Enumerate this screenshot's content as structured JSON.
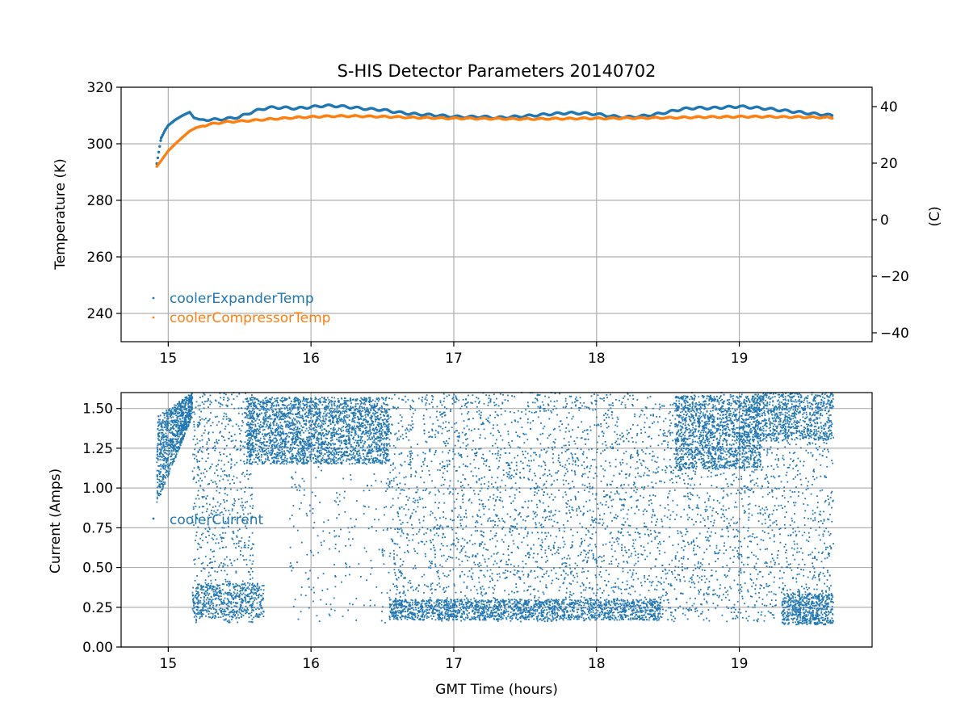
{
  "chart_data": [
    {
      "type": "scatter",
      "title": "S-HIS Detector Parameters 20140702",
      "xlabel": "",
      "ylabel": "Temperature (K)",
      "ylabel_right": "(C)",
      "xlim": [
        14.67,
        19.93
      ],
      "ylim": [
        230,
        320
      ],
      "ylim_right": [
        -43.15,
        46.85
      ],
      "xticks": [
        15,
        16,
        17,
        18,
        19
      ],
      "yticks": [
        240,
        260,
        280,
        300,
        320
      ],
      "yticks_right": [
        -40,
        -20,
        0,
        20,
        40
      ],
      "grid": true,
      "legend_position": "lower-left",
      "series": [
        {
          "name": "coolerExpanderTemp",
          "color": "#1f77b4",
          "x": [
            14.92,
            14.95,
            14.98,
            15.0,
            15.05,
            15.1,
            15.15,
            15.18,
            15.22,
            15.3,
            15.4,
            15.5,
            15.6,
            15.7,
            15.8,
            15.9,
            16.0,
            16.1,
            16.2,
            16.3,
            16.4,
            16.5,
            16.6,
            16.7,
            16.8,
            16.9,
            17.0,
            17.1,
            17.2,
            17.3,
            17.4,
            17.5,
            17.6,
            17.7,
            17.8,
            17.9,
            18.0,
            18.1,
            18.2,
            18.3,
            18.4,
            18.5,
            18.6,
            18.7,
            18.8,
            18.9,
            19.0,
            19.1,
            19.2,
            19.3,
            19.4,
            19.5,
            19.6,
            19.65
          ],
          "y": [
            293.0,
            302.0,
            305.0,
            306.5,
            308.5,
            310.0,
            311.2,
            309.2,
            308.6,
            308.5,
            308.8,
            309.5,
            311.5,
            312.8,
            312.8,
            312.5,
            313.0,
            313.5,
            313.3,
            312.8,
            312.3,
            312.0,
            311.2,
            310.6,
            310.3,
            310.0,
            309.6,
            309.5,
            309.6,
            309.2,
            309.5,
            309.8,
            310.2,
            310.6,
            310.9,
            310.8,
            310.5,
            309.8,
            309.4,
            309.7,
            310.3,
            311.2,
            312.3,
            312.7,
            312.6,
            312.9,
            313.2,
            312.8,
            312.4,
            311.8,
            311.3,
            310.7,
            310.3,
            310.0
          ]
        },
        {
          "name": "coolerCompressorTemp",
          "color": "#ff7f0e",
          "x": [
            14.92,
            14.95,
            15.0,
            15.05,
            15.1,
            15.15,
            15.2,
            15.3,
            15.4,
            15.5,
            15.6,
            15.7,
            15.8,
            15.9,
            16.0,
            16.1,
            16.2,
            16.3,
            16.4,
            16.5,
            16.6,
            16.7,
            16.8,
            16.9,
            17.0,
            17.1,
            17.2,
            17.3,
            17.4,
            17.5,
            17.6,
            17.7,
            17.8,
            17.9,
            18.0,
            18.1,
            18.2,
            18.3,
            18.4,
            18.5,
            18.6,
            18.7,
            18.8,
            18.9,
            19.0,
            19.1,
            19.2,
            19.3,
            19.4,
            19.5,
            19.6,
            19.65
          ],
          "y": [
            292.0,
            294.0,
            297.5,
            300.0,
            302.3,
            304.5,
            305.8,
            307.0,
            307.7,
            308.0,
            308.3,
            308.7,
            309.0,
            309.3,
            309.5,
            309.7,
            309.8,
            309.8,
            309.7,
            309.6,
            309.5,
            309.3,
            309.2,
            309.1,
            309.0,
            309.0,
            308.9,
            308.9,
            308.8,
            308.8,
            308.8,
            308.9,
            308.9,
            309.0,
            309.0,
            309.0,
            309.1,
            309.1,
            309.2,
            309.2,
            309.3,
            309.4,
            309.5,
            309.5,
            309.6,
            309.6,
            309.6,
            309.5,
            309.5,
            309.4,
            309.3,
            309.2
          ]
        }
      ]
    },
    {
      "type": "scatter",
      "title": "",
      "xlabel": "GMT Time (hours)",
      "ylabel": "Current (Amps)",
      "xlim": [
        14.67,
        19.93
      ],
      "ylim": [
        0.0,
        1.6
      ],
      "xticks": [
        15,
        16,
        17,
        18,
        19
      ],
      "yticks": [
        "0.00",
        "0.25",
        "0.50",
        "0.75",
        "1.00",
        "1.25",
        "1.50"
      ],
      "grid": true,
      "legend_position": "center-left",
      "series": [
        {
          "name": "coolerCurrent",
          "color": "#1f77b4",
          "x_range": [
            14.92,
            19.66
          ],
          "y_range": [
            0.12,
            1.6
          ],
          "segments": [
            {
              "x": [
                14.92,
                15.17
              ],
              "low": 0.9,
              "high": 1.6,
              "note": "rising dense band"
            },
            {
              "x": [
                15.17,
                15.6
              ],
              "low": 0.15,
              "high": 1.6,
              "note": "scattered with dense band near 0.25"
            },
            {
              "x": [
                15.55,
                16.55
              ],
              "low": 1.15,
              "high": 1.6,
              "note": "dense band 1.2-1.55"
            },
            {
              "x": [
                15.8,
                16.55
              ],
              "low": 0.15,
              "high": 1.15,
              "note": "sparse scatter"
            },
            {
              "x": [
                16.55,
                18.6
              ],
              "low": 0.18,
              "high": 1.6,
              "note": "uniform scatter with dense band near 0.22"
            },
            {
              "x": [
                18.6,
                19.1
              ],
              "low": 1.1,
              "high": 1.6,
              "note": "dense band 1.2-1.5"
            },
            {
              "x": [
                18.6,
                19.66
              ],
              "low": 0.15,
              "high": 1.6,
              "note": "uniform scatter"
            }
          ]
        }
      ]
    }
  ]
}
